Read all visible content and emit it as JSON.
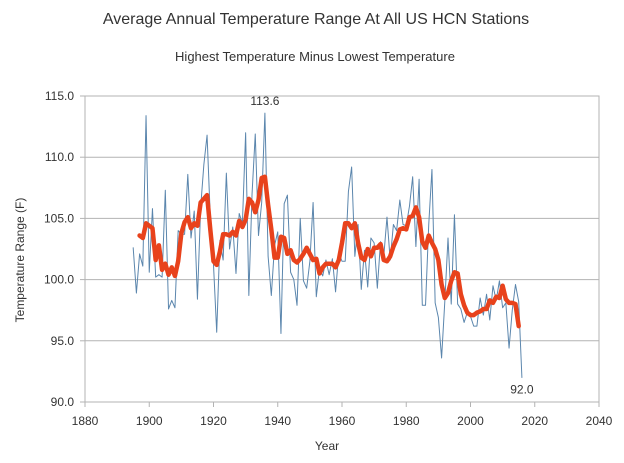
{
  "chart_data": {
    "type": "line",
    "title": "Average Annual Temperature Range At All US HCN Stations",
    "subtitle": "Highest Temperature Minus Lowest Temperature",
    "xlabel": "Year",
    "ylabel": "Temperature Range (F)",
    "xlim": [
      1880,
      2040
    ],
    "ylim": [
      90,
      115
    ],
    "x_ticks": [
      1880,
      1900,
      1920,
      1940,
      1960,
      1980,
      2000,
      2020,
      2040
    ],
    "y_ticks": [
      90,
      95,
      100,
      105,
      110,
      115
    ],
    "x_tick_labels": [
      "1880",
      "1900",
      "1920",
      "1940",
      "1960",
      "1980",
      "2000",
      "2020",
      "2040"
    ],
    "y_tick_labels": [
      "90.0",
      "95.0",
      "100.0",
      "105.0",
      "110.0",
      "115.0"
    ],
    "grid": "horizontal",
    "legend": "none",
    "series": [
      {
        "color": "#5b86ad",
        "style": "thin",
        "points": [
          [
            1895,
            102.6
          ],
          [
            1896,
            98.9
          ],
          [
            1897,
            102.1
          ],
          [
            1898,
            101.1
          ],
          [
            1899,
            113.4
          ],
          [
            1900,
            100.6
          ],
          [
            1901,
            105.8
          ],
          [
            1902,
            100.2
          ],
          [
            1903,
            100.4
          ],
          [
            1904,
            100.2
          ],
          [
            1905,
            107.3
          ],
          [
            1906,
            97.6
          ],
          [
            1907,
            98.3
          ],
          [
            1908,
            97.7
          ],
          [
            1909,
            104.0
          ],
          [
            1910,
            103.7
          ],
          [
            1911,
            103.7
          ],
          [
            1912,
            108.6
          ],
          [
            1913,
            103.4
          ],
          [
            1914,
            105.6
          ],
          [
            1915,
            98.4
          ],
          [
            1916,
            105.9
          ],
          [
            1917,
            109.4
          ],
          [
            1918,
            111.8
          ],
          [
            1919,
            105.1
          ],
          [
            1920,
            101.2
          ],
          [
            1921,
            95.7
          ],
          [
            1922,
            103.2
          ],
          [
            1923,
            101.6
          ],
          [
            1924,
            108.7
          ],
          [
            1925,
            102.5
          ],
          [
            1926,
            104.3
          ],
          [
            1927,
            100.5
          ],
          [
            1928,
            105.4
          ],
          [
            1929,
            104.6
          ],
          [
            1930,
            112.0
          ],
          [
            1931,
            98.7
          ],
          [
            1932,
            107.0
          ],
          [
            1933,
            111.9
          ],
          [
            1934,
            103.6
          ],
          [
            1935,
            106.3
          ],
          [
            1936,
            113.6
          ],
          [
            1937,
            101.9
          ],
          [
            1938,
            98.7
          ],
          [
            1939,
            102.8
          ],
          [
            1940,
            103.9
          ],
          [
            1941,
            95.6
          ],
          [
            1942,
            106.2
          ],
          [
            1943,
            106.9
          ],
          [
            1944,
            100.6
          ],
          [
            1945,
            100.0
          ],
          [
            1946,
            97.9
          ],
          [
            1947,
            105.0
          ],
          [
            1948,
            99.9
          ],
          [
            1949,
            99.3
          ],
          [
            1950,
            101.5
          ],
          [
            1951,
            106.3
          ],
          [
            1952,
            98.6
          ],
          [
            1953,
            100.9
          ],
          [
            1954,
            100.3
          ],
          [
            1955,
            101.6
          ],
          [
            1956,
            100.4
          ],
          [
            1957,
            101.7
          ],
          [
            1958,
            99.0
          ],
          [
            1959,
            102.2
          ],
          [
            1960,
            101.5
          ],
          [
            1961,
            101.5
          ],
          [
            1962,
            107.2
          ],
          [
            1963,
            109.2
          ],
          [
            1964,
            101.9
          ],
          [
            1965,
            104.5
          ],
          [
            1966,
            99.2
          ],
          [
            1967,
            102.4
          ],
          [
            1968,
            99.4
          ],
          [
            1969,
            103.4
          ],
          [
            1970,
            103.0
          ],
          [
            1971,
            99.3
          ],
          [
            1972,
            103.1
          ],
          [
            1973,
            101.9
          ],
          [
            1974,
            105.1
          ],
          [
            1975,
            101.6
          ],
          [
            1976,
            104.5
          ],
          [
            1977,
            104.0
          ],
          [
            1978,
            106.5
          ],
          [
            1979,
            104.5
          ],
          [
            1980,
            104.4
          ],
          [
            1981,
            106.0
          ],
          [
            1982,
            108.4
          ],
          [
            1983,
            102.7
          ],
          [
            1984,
            108.2
          ],
          [
            1985,
            97.9
          ],
          [
            1986,
            97.9
          ],
          [
            1987,
            104.5
          ],
          [
            1988,
            109.0
          ],
          [
            1989,
            98.1
          ],
          [
            1990,
            96.9
          ],
          [
            1991,
            93.6
          ],
          [
            1992,
            98.2
          ],
          [
            1993,
            103.4
          ],
          [
            1994,
            98.0
          ],
          [
            1995,
            105.3
          ],
          [
            1996,
            98.0
          ],
          [
            1997,
            97.6
          ],
          [
            1998,
            96.5
          ],
          [
            1999,
            97.3
          ],
          [
            2000,
            97.0
          ],
          [
            2001,
            96.2
          ],
          [
            2002,
            96.2
          ],
          [
            2003,
            98.5
          ],
          [
            2004,
            97.1
          ],
          [
            2005,
            98.8
          ],
          [
            2006,
            96.7
          ],
          [
            2007,
            99.5
          ],
          [
            2008,
            98.3
          ],
          [
            2009,
            99.9
          ],
          [
            2010,
            97.7
          ],
          [
            2011,
            98.1
          ],
          [
            2012,
            94.4
          ],
          [
            2013,
            97.5
          ],
          [
            2014,
            99.6
          ],
          [
            2015,
            98.2
          ],
          [
            2016,
            92.0
          ]
        ]
      },
      {
        "color": "#e8421c",
        "style": "thick",
        "points": [
          [
            1897,
            103.6
          ],
          [
            1898,
            103.4
          ],
          [
            1899,
            104.6
          ],
          [
            1900,
            104.4
          ],
          [
            1901,
            104.2
          ],
          [
            1902,
            101.6
          ],
          [
            1903,
            102.8
          ],
          [
            1904,
            100.8
          ],
          [
            1905,
            101.3
          ],
          [
            1906,
            100.4
          ],
          [
            1907,
            101.0
          ],
          [
            1908,
            100.3
          ],
          [
            1909,
            101.5
          ],
          [
            1910,
            103.8
          ],
          [
            1911,
            104.7
          ],
          [
            1912,
            105.1
          ],
          [
            1913,
            104.2
          ],
          [
            1914,
            104.6
          ],
          [
            1915,
            104.4
          ],
          [
            1916,
            106.3
          ],
          [
            1917,
            106.6
          ],
          [
            1918,
            106.9
          ],
          [
            1919,
            104.1
          ],
          [
            1920,
            101.5
          ],
          [
            1921,
            101.2
          ],
          [
            1922,
            102.3
          ],
          [
            1923,
            103.7
          ],
          [
            1924,
            103.7
          ],
          [
            1925,
            103.6
          ],
          [
            1926,
            103.9
          ],
          [
            1927,
            103.6
          ],
          [
            1928,
            104.8
          ],
          [
            1929,
            104.3
          ],
          [
            1930,
            104.9
          ],
          [
            1931,
            106.6
          ],
          [
            1932,
            106.3
          ],
          [
            1933,
            105.5
          ],
          [
            1934,
            106.5
          ],
          [
            1935,
            108.3
          ],
          [
            1936,
            108.4
          ],
          [
            1937,
            106.1
          ],
          [
            1938,
            104.1
          ],
          [
            1939,
            101.8
          ],
          [
            1940,
            101.8
          ],
          [
            1941,
            103.5
          ],
          [
            1942,
            103.4
          ],
          [
            1943,
            102.1
          ],
          [
            1944,
            102.4
          ],
          [
            1945,
            101.6
          ],
          [
            1946,
            101.4
          ],
          [
            1947,
            101.7
          ],
          [
            1948,
            102.1
          ],
          [
            1949,
            102.6
          ],
          [
            1950,
            102.1
          ],
          [
            1951,
            101.6
          ],
          [
            1952,
            101.7
          ],
          [
            1953,
            100.5
          ],
          [
            1954,
            101.0
          ],
          [
            1955,
            101.3
          ],
          [
            1956,
            101.3
          ],
          [
            1957,
            101.3
          ],
          [
            1958,
            101.0
          ],
          [
            1959,
            101.6
          ],
          [
            1960,
            103.0
          ],
          [
            1961,
            104.6
          ],
          [
            1962,
            104.6
          ],
          [
            1963,
            104.2
          ],
          [
            1964,
            104.6
          ],
          [
            1965,
            103.0
          ],
          [
            1966,
            101.8
          ],
          [
            1967,
            101.6
          ],
          [
            1968,
            102.5
          ],
          [
            1969,
            101.9
          ],
          [
            1970,
            102.6
          ],
          [
            1971,
            102.6
          ],
          [
            1972,
            102.9
          ],
          [
            1973,
            101.6
          ],
          [
            1974,
            101.5
          ],
          [
            1975,
            101.9
          ],
          [
            1976,
            102.7
          ],
          [
            1977,
            103.3
          ],
          [
            1978,
            104.1
          ],
          [
            1979,
            104.2
          ],
          [
            1980,
            104.1
          ],
          [
            1981,
            105.1
          ],
          [
            1982,
            105.2
          ],
          [
            1983,
            105.9
          ],
          [
            1984,
            105.1
          ],
          [
            1985,
            103.1
          ],
          [
            1986,
            102.6
          ],
          [
            1987,
            103.6
          ],
          [
            1988,
            103.0
          ],
          [
            1989,
            102.5
          ],
          [
            1990,
            101.6
          ],
          [
            1991,
            99.6
          ],
          [
            1992,
            98.5
          ],
          [
            1993,
            98.9
          ],
          [
            1994,
            99.9
          ],
          [
            1995,
            100.6
          ],
          [
            1996,
            100.5
          ],
          [
            1997,
            98.8
          ],
          [
            1998,
            97.9
          ],
          [
            1999,
            97.3
          ],
          [
            2000,
            97.1
          ],
          [
            2001,
            97.1
          ],
          [
            2002,
            97.3
          ],
          [
            2003,
            97.4
          ],
          [
            2004,
            97.6
          ],
          [
            2005,
            97.6
          ],
          [
            2006,
            98.3
          ],
          [
            2007,
            98.1
          ],
          [
            2008,
            98.6
          ],
          [
            2009,
            98.5
          ],
          [
            2010,
            99.5
          ],
          [
            2011,
            98.4
          ],
          [
            2012,
            98.1
          ],
          [
            2013,
            98.1
          ],
          [
            2014,
            98.0
          ],
          [
            2015,
            96.2
          ]
        ]
      }
    ],
    "annotations": [
      {
        "text": "113.6",
        "x": 1936,
        "y": 113.6
      },
      {
        "text": "92.0",
        "x": 2016,
        "y": 92.0
      }
    ]
  }
}
